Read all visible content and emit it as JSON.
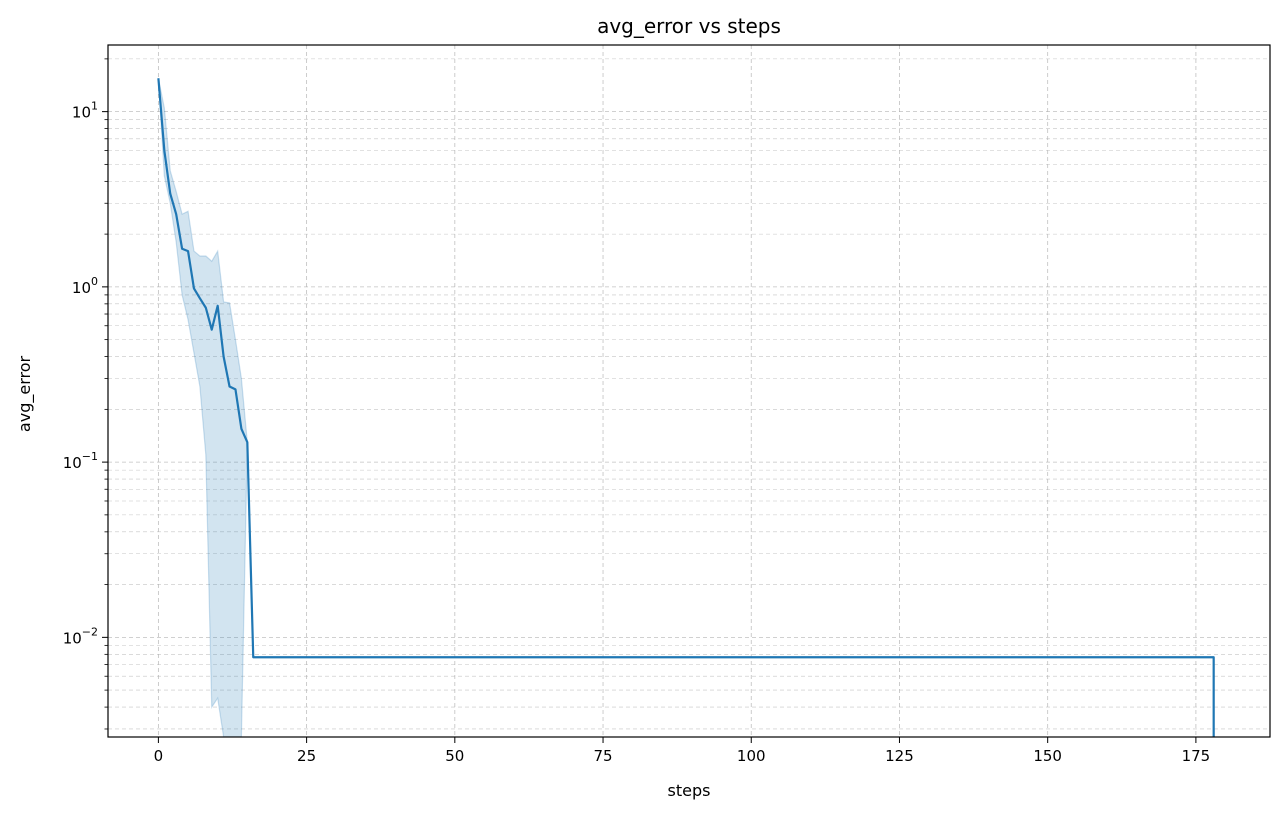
{
  "chart_data": {
    "type": "line",
    "title": "avg_error vs steps",
    "xlabel": "steps",
    "ylabel": "avg_error",
    "xlim": [
      -8.5,
      187.5
    ],
    "ylim": [
      0.0027,
      24
    ],
    "yscale": "log",
    "grid": true,
    "line_color": "#1f77b4",
    "band_color": "#1f77b4",
    "x_ticks": [
      0,
      25,
      50,
      75,
      100,
      125,
      150,
      175
    ],
    "x_tick_labels": [
      "0",
      "25",
      "50",
      "75",
      "100",
      "125",
      "150",
      "175"
    ],
    "y_ticks": [
      {
        "value": 10,
        "base": "10",
        "exp": "1"
      },
      {
        "value": 1,
        "base": "10",
        "exp": "0"
      },
      {
        "value": 0.1,
        "base": "10",
        "exp": "−1"
      },
      {
        "value": 0.01,
        "base": "10",
        "exp": "−2"
      }
    ],
    "series": [
      {
        "x": [
          0,
          1,
          2,
          3,
          4,
          5,
          6,
          7,
          8,
          9,
          10,
          11,
          12,
          13,
          14,
          15,
          16,
          178,
          178
        ],
        "y": [
          15.5,
          6.0,
          3.4,
          2.6,
          1.65,
          1.6,
          0.98,
          0.86,
          0.76,
          0.57,
          0.78,
          0.4,
          0.27,
          0.26,
          0.155,
          0.13,
          0.0077,
          0.0077,
          0.0027
        ],
        "band_upper": [
          15.5,
          10.5,
          4.6,
          3.5,
          2.6,
          2.7,
          1.6,
          1.5,
          1.5,
          1.4,
          1.6,
          0.82,
          0.81,
          0.5,
          0.3,
          0.13,
          0.0077,
          0.0077,
          0.0027
        ],
        "band_lower": [
          15.5,
          4.3,
          3.0,
          1.8,
          0.9,
          0.65,
          0.42,
          0.27,
          0.11,
          0.004,
          0.0045,
          0.0027,
          0.0027,
          0.0027,
          0.0027,
          0.13,
          0.0077,
          0.0077,
          0.0027
        ]
      }
    ]
  }
}
